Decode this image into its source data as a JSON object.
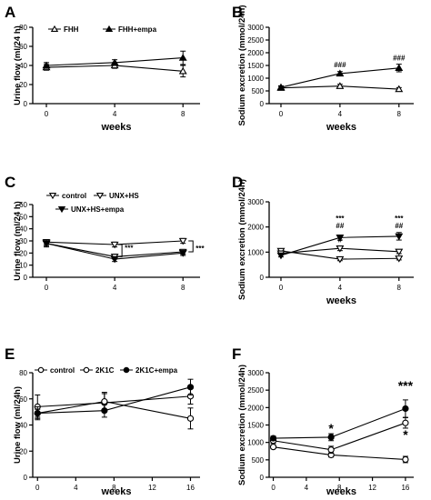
{
  "figure": {
    "panels": [
      {
        "letter": "A"
      },
      {
        "letter": "B"
      },
      {
        "letter": "C"
      },
      {
        "letter": "D"
      },
      {
        "letter": "E"
      },
      {
        "letter": "F"
      }
    ]
  },
  "chart_data": [
    {
      "panel": "A",
      "type": "line",
      "ylabel": "Urine flow (ml/24 h)",
      "xlabel": "weeks",
      "xticks": [
        0,
        4,
        8
      ],
      "yticks": [
        0,
        20,
        40,
        60,
        80
      ],
      "xlim": [
        -0.8,
        9
      ],
      "ylim": [
        0,
        80
      ],
      "legend": {
        "position": "top-left",
        "layout": "row"
      },
      "series": [
        {
          "name": "FHH",
          "marker": "triangle-open",
          "x": [
            0,
            4,
            8
          ],
          "y": [
            38,
            40,
            34
          ],
          "err": [
            3,
            3,
            6
          ]
        },
        {
          "name": "FHH+empa",
          "marker": "triangle-filled",
          "x": [
            0,
            4,
            8
          ],
          "y": [
            40,
            43,
            48
          ],
          "err": [
            3,
            3,
            7
          ]
        }
      ]
    },
    {
      "panel": "B",
      "type": "line",
      "ylabel": "Sodium excretion (mmol/24h)",
      "xlabel": "weeks",
      "xticks": [
        0,
        4,
        8
      ],
      "yticks": [
        0,
        500,
        1000,
        1500,
        2000,
        2500,
        3000
      ],
      "xlim": [
        -0.8,
        9
      ],
      "ylim": [
        0,
        3000
      ],
      "series": [
        {
          "name": "",
          "marker": "triangle-open",
          "x": [
            0,
            4,
            8
          ],
          "y": [
            620,
            690,
            570
          ],
          "err": [
            60,
            70,
            60
          ]
        },
        {
          "name": "",
          "marker": "triangle-filled",
          "x": [
            0,
            4,
            8
          ],
          "y": [
            640,
            1180,
            1400
          ],
          "err": [
            60,
            80,
            150
          ]
        }
      ],
      "annotations": [
        {
          "x": 4,
          "text": "###",
          "y": 1420
        },
        {
          "x": 8,
          "text": "###",
          "y": 1700
        }
      ]
    },
    {
      "panel": "C",
      "type": "line",
      "ylabel": "Urine flow (ml/24 h)",
      "xlabel": "",
      "xticks": [
        0,
        4,
        8
      ],
      "yticks": [
        0,
        10,
        20,
        30,
        40,
        50,
        60
      ],
      "xlim": [
        -0.8,
        9
      ],
      "ylim": [
        0,
        60
      ],
      "legend": {
        "position": "top",
        "layout": "two-rows"
      },
      "series": [
        {
          "name": "control",
          "marker": "triangle-down-open",
          "x": [
            0,
            4,
            8
          ],
          "y": [
            29,
            27,
            30
          ],
          "err": [
            2,
            2,
            2
          ]
        },
        {
          "name": "UNX+HS",
          "marker": "triangle-down-open",
          "x": [
            0,
            4,
            8
          ],
          "y": [
            28,
            17,
            21
          ],
          "err": [
            3,
            2,
            2
          ]
        },
        {
          "name": "UNX+HS+empa",
          "marker": "triangle-down-filled",
          "x": [
            0,
            4,
            8
          ],
          "y": [
            28,
            15,
            20
          ],
          "err": [
            2,
            2,
            2
          ]
        }
      ],
      "annotations": [
        {
          "x": 4,
          "text": "***",
          "y": 22
        },
        {
          "x": 8,
          "text": "***",
          "y": 24
        }
      ]
    },
    {
      "panel": "D",
      "type": "line",
      "ylabel": "Sodium excretion (mmol/24h)",
      "xlabel": "weeks",
      "xticks": [
        0,
        4,
        8
      ],
      "yticks": [
        0,
        1000,
        2000,
        3000
      ],
      "xlim": [
        -0.8,
        9
      ],
      "ylim": [
        0,
        3000
      ],
      "series": [
        {
          "name": "",
          "marker": "triangle-down-open",
          "x": [
            0,
            4,
            8
          ],
          "y": [
            1050,
            720,
            750
          ],
          "err": [
            60,
            60,
            60
          ]
        },
        {
          "name": "",
          "marker": "triangle-down-open",
          "x": [
            0,
            4,
            8
          ],
          "y": [
            950,
            1150,
            1020
          ],
          "err": [
            60,
            90,
            80
          ]
        },
        {
          "name": "",
          "marker": "triangle-down-filled",
          "x": [
            0,
            4,
            8
          ],
          "y": [
            870,
            1580,
            1630
          ],
          "err": [
            60,
            100,
            150
          ]
        }
      ],
      "annotations": [
        {
          "x": 4,
          "text": "***",
          "y": 2250
        },
        {
          "x": 4,
          "text": "##",
          "y": 1950
        },
        {
          "x": 4,
          "text": "#",
          "y": 1400
        },
        {
          "x": 8,
          "text": "***",
          "y": 2250
        },
        {
          "x": 8,
          "text": "##",
          "y": 1950
        }
      ]
    },
    {
      "panel": "E",
      "type": "line",
      "ylabel": "Urine flow (ml/24h)",
      "xlabel": "weeks",
      "xticks": [
        0,
        4,
        8,
        12,
        16
      ],
      "yticks": [
        0,
        20,
        40,
        60,
        80
      ],
      "xlim": [
        -0.5,
        17
      ],
      "ylim": [
        0,
        80
      ],
      "legend": {
        "position": "top",
        "layout": "row"
      },
      "series": [
        {
          "name": "control",
          "marker": "circle-open",
          "x": [
            0,
            7,
            16
          ],
          "y": [
            54,
            57,
            62
          ],
          "err": [
            9,
            7,
            6
          ]
        },
        {
          "name": "2K1C",
          "marker": "circle-open",
          "x": [
            0,
            7,
            16
          ],
          "y": [
            49,
            58,
            45
          ],
          "err": [
            5,
            7,
            8
          ]
        },
        {
          "name": "2K1C+empa",
          "marker": "circle-filled",
          "x": [
            0,
            7,
            16
          ],
          "y": [
            49,
            51,
            69
          ],
          "err": [
            3,
            5,
            6
          ]
        }
      ]
    },
    {
      "panel": "F",
      "type": "line",
      "ylabel": "Sodium excretion (mmol/24h)",
      "xlabel": "weeks",
      "xticks": [
        0,
        4,
        8,
        12,
        16
      ],
      "yticks": [
        0,
        500,
        1000,
        1500,
        2000,
        2500,
        3000
      ],
      "xlim": [
        -0.5,
        17
      ],
      "ylim": [
        0,
        3000
      ],
      "series": [
        {
          "name": "",
          "marker": "circle-open",
          "x": [
            0,
            7,
            16
          ],
          "y": [
            870,
            640,
            510
          ],
          "err": [
            50,
            60,
            90
          ]
        },
        {
          "name": "",
          "marker": "circle-open",
          "x": [
            0,
            7,
            16
          ],
          "y": [
            1050,
            790,
            1560
          ],
          "err": [
            80,
            100,
            150
          ]
        },
        {
          "name": "",
          "marker": "circle-filled",
          "x": [
            0,
            7,
            16
          ],
          "y": [
            1120,
            1150,
            1970
          ],
          "err": [
            60,
            100,
            250
          ]
        }
      ],
      "annotations": [
        {
          "x": 7,
          "text": "*",
          "y": 1280,
          "size": "large"
        },
        {
          "x": 16,
          "text": "***",
          "y": 2500,
          "size": "large"
        },
        {
          "x": 16,
          "text": "*",
          "y": 1100,
          "size": "large"
        }
      ]
    }
  ]
}
